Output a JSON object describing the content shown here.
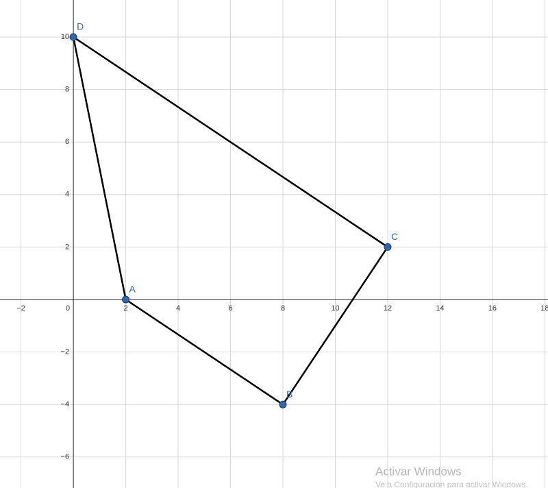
{
  "chart_data": {
    "type": "polygon",
    "labels": [
      "A",
      "B",
      "C",
      "D"
    ],
    "x": [
      2,
      8,
      12,
      0
    ],
    "values": [
      0,
      -4,
      2,
      10
    ],
    "color": "#3266a8",
    "line_color": "#000000",
    "xlim": [
      -2.8,
      18.12
    ],
    "ylim": [
      -7.18,
      11.41
    ],
    "xticks": [
      {
        "value": -2,
        "label": "−2"
      },
      0,
      2,
      4,
      6,
      8,
      10,
      12,
      14,
      16,
      18
    ],
    "yticks": [
      {
        "value": -6,
        "label": "−6"
      },
      {
        "value": -4,
        "label": "−4"
      },
      {
        "value": -2,
        "label": "−2"
      },
      2,
      4,
      6,
      8,
      10
    ],
    "grid": true
  },
  "watermark": {
    "title": "Activar Windows",
    "subtitle": "Ve a Configuración para activar Windows."
  }
}
